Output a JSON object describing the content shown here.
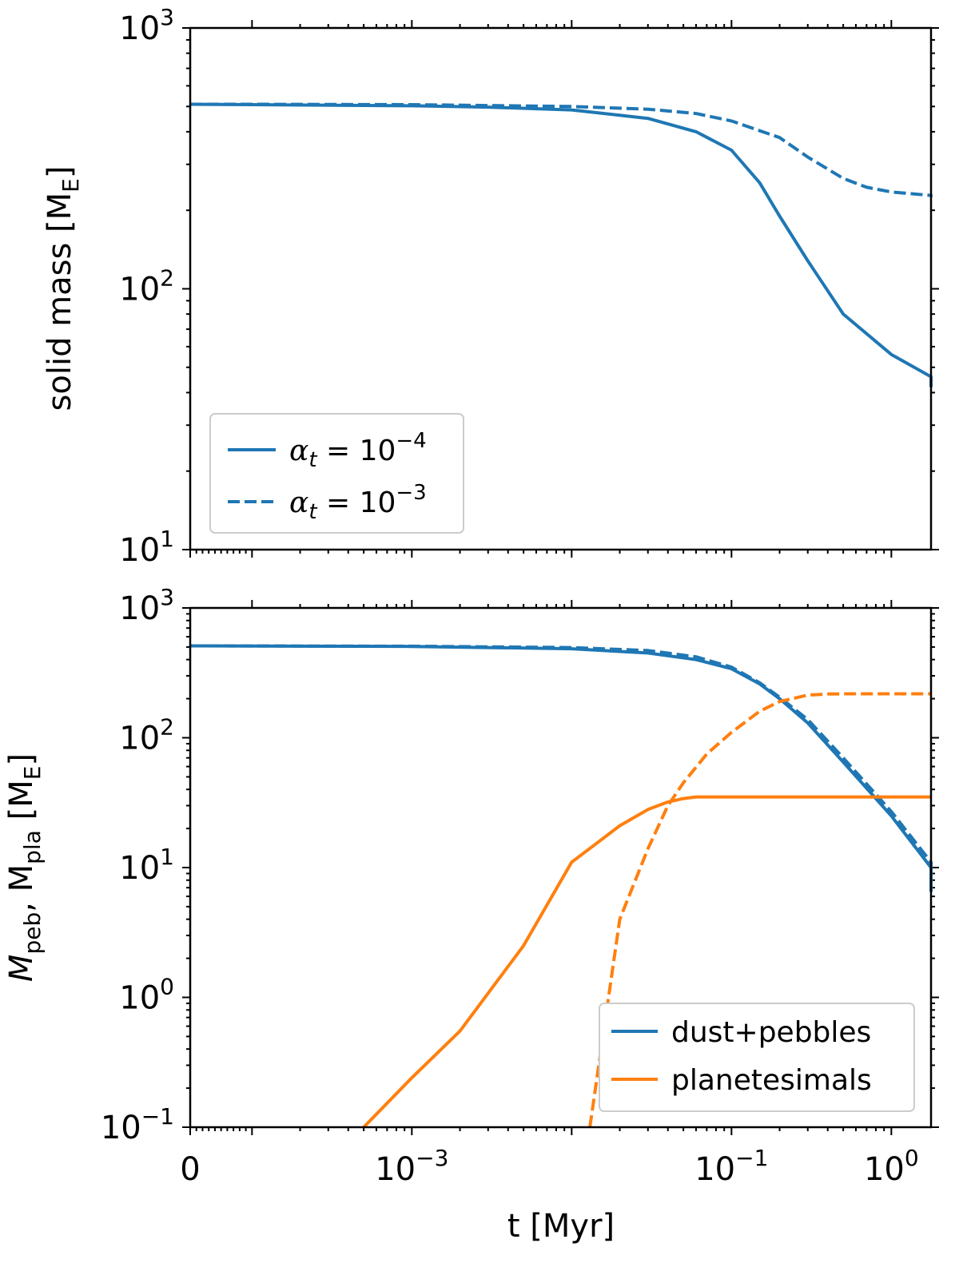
{
  "colors": {
    "blue": "#1f77b4",
    "orange": "#ff7f0e"
  },
  "chart_data": [
    {
      "type": "line",
      "xscale": "symlog",
      "yscale": "log",
      "xlim": [
        0,
        3
      ],
      "ylim": [
        10,
        1000
      ],
      "xlabel": "",
      "ylabel": "solid mass [M",
      "ylabel_sub": "E",
      "ylabel_end": "]",
      "yticks": [
        {
          "value": 10,
          "base": "10",
          "exp": "1"
        },
        {
          "value": 100,
          "base": "10",
          "exp": "2"
        },
        {
          "value": 1000,
          "base": "10",
          "exp": "3"
        }
      ],
      "legend_position": "lower-left",
      "legend": [
        {
          "style": "solid",
          "base": "10",
          "exp": "−4"
        },
        {
          "style": "dashed",
          "base": "10",
          "exp": "−3"
        }
      ],
      "series": [
        {
          "style": "solid",
          "color": "#1f77b4",
          "x": [
            0,
            0.0001,
            0.001,
            0.003,
            0.01,
            0.03,
            0.06,
            0.1,
            0.15,
            0.2,
            0.3,
            0.5,
            1,
            2,
            3
          ],
          "y": [
            510,
            508,
            503,
            497,
            485,
            450,
            400,
            340,
            255,
            190,
            128,
            80,
            56,
            46,
            42
          ]
        },
        {
          "style": "dashed",
          "color": "#1f77b4",
          "x": [
            0,
            0.0001,
            0.001,
            0.01,
            0.03,
            0.06,
            0.1,
            0.2,
            0.3,
            0.5,
            0.7,
            1,
            2,
            3
          ],
          "y": [
            510,
            510,
            508,
            500,
            488,
            470,
            440,
            380,
            320,
            265,
            245,
            235,
            228,
            225
          ]
        }
      ]
    },
    {
      "type": "line",
      "xscale": "symlog",
      "yscale": "log",
      "xlim": [
        0,
        3
      ],
      "ylim": [
        0.1,
        1000
      ],
      "xlabel": "t [Myr]",
      "ylabel": "M",
      "ylabel_sub1": "peb",
      "ylabel_mid": ", M",
      "ylabel_sub2": "pla",
      "ylabel_unit": " [M",
      "ylabel_unit_sub": "E",
      "ylabel_end": "]",
      "xticks": [
        {
          "value": 0,
          "base": "0",
          "exp": ""
        },
        {
          "value": 0.001,
          "base": "10",
          "exp": "−3"
        },
        {
          "value": 0.1,
          "base": "10",
          "exp": "−1"
        },
        {
          "value": 1,
          "base": "10",
          "exp": "0"
        }
      ],
      "yticks": [
        {
          "value": 0.1,
          "base": "10",
          "exp": "−1"
        },
        {
          "value": 1,
          "base": "10",
          "exp": "0"
        },
        {
          "value": 10,
          "base": "10",
          "exp": "1"
        },
        {
          "value": 100,
          "base": "10",
          "exp": "2"
        },
        {
          "value": 1000,
          "base": "10",
          "exp": "3"
        }
      ],
      "legend_position": "lower-right",
      "legend": [
        {
          "label": "dust+pebbles",
          "color": "#1f77b4"
        },
        {
          "label": "planetesimals",
          "color": "#ff7f0e"
        }
      ],
      "series": [
        {
          "name": "dust+pebbles",
          "style": "solid",
          "color": "#1f77b4",
          "x": [
            0,
            0.001,
            0.01,
            0.03,
            0.06,
            0.1,
            0.15,
            0.2,
            0.3,
            0.5,
            1,
            2,
            3
          ],
          "y": [
            510,
            505,
            485,
            450,
            400,
            340,
            260,
            200,
            130,
            65,
            25,
            10,
            6.5
          ]
        },
        {
          "name": "dust+pebbles",
          "style": "dashed",
          "color": "#1f77b4",
          "x": [
            0,
            0.001,
            0.01,
            0.03,
            0.06,
            0.1,
            0.15,
            0.2,
            0.3,
            0.5,
            1,
            2,
            3
          ],
          "y": [
            510,
            507,
            495,
            470,
            420,
            350,
            265,
            205,
            138,
            70,
            27,
            11,
            7.5
          ]
        },
        {
          "name": "planetesimals",
          "style": "solid",
          "color": "#ff7f0e",
          "x": [
            0.0005,
            0.001,
            0.002,
            0.005,
            0.01,
            0.02,
            0.03,
            0.04,
            0.05,
            0.06,
            0.08,
            0.1,
            0.2,
            0.5,
            1,
            2,
            3
          ],
          "y": [
            0.1,
            0.24,
            0.55,
            2.5,
            11,
            21,
            28,
            32,
            34,
            35,
            35,
            35,
            35,
            35,
            35,
            35,
            35
          ]
        },
        {
          "name": "planetesimals",
          "style": "dashed",
          "color": "#ff7f0e",
          "x": [
            0.013,
            0.02,
            0.03,
            0.04,
            0.05,
            0.07,
            0.1,
            0.15,
            0.2,
            0.3,
            0.4,
            0.5,
            1,
            2,
            3
          ],
          "y": [
            0.1,
            4,
            14,
            30,
            45,
            75,
            110,
            160,
            190,
            213,
            217,
            218,
            218,
            218,
            218
          ]
        }
      ]
    }
  ]
}
